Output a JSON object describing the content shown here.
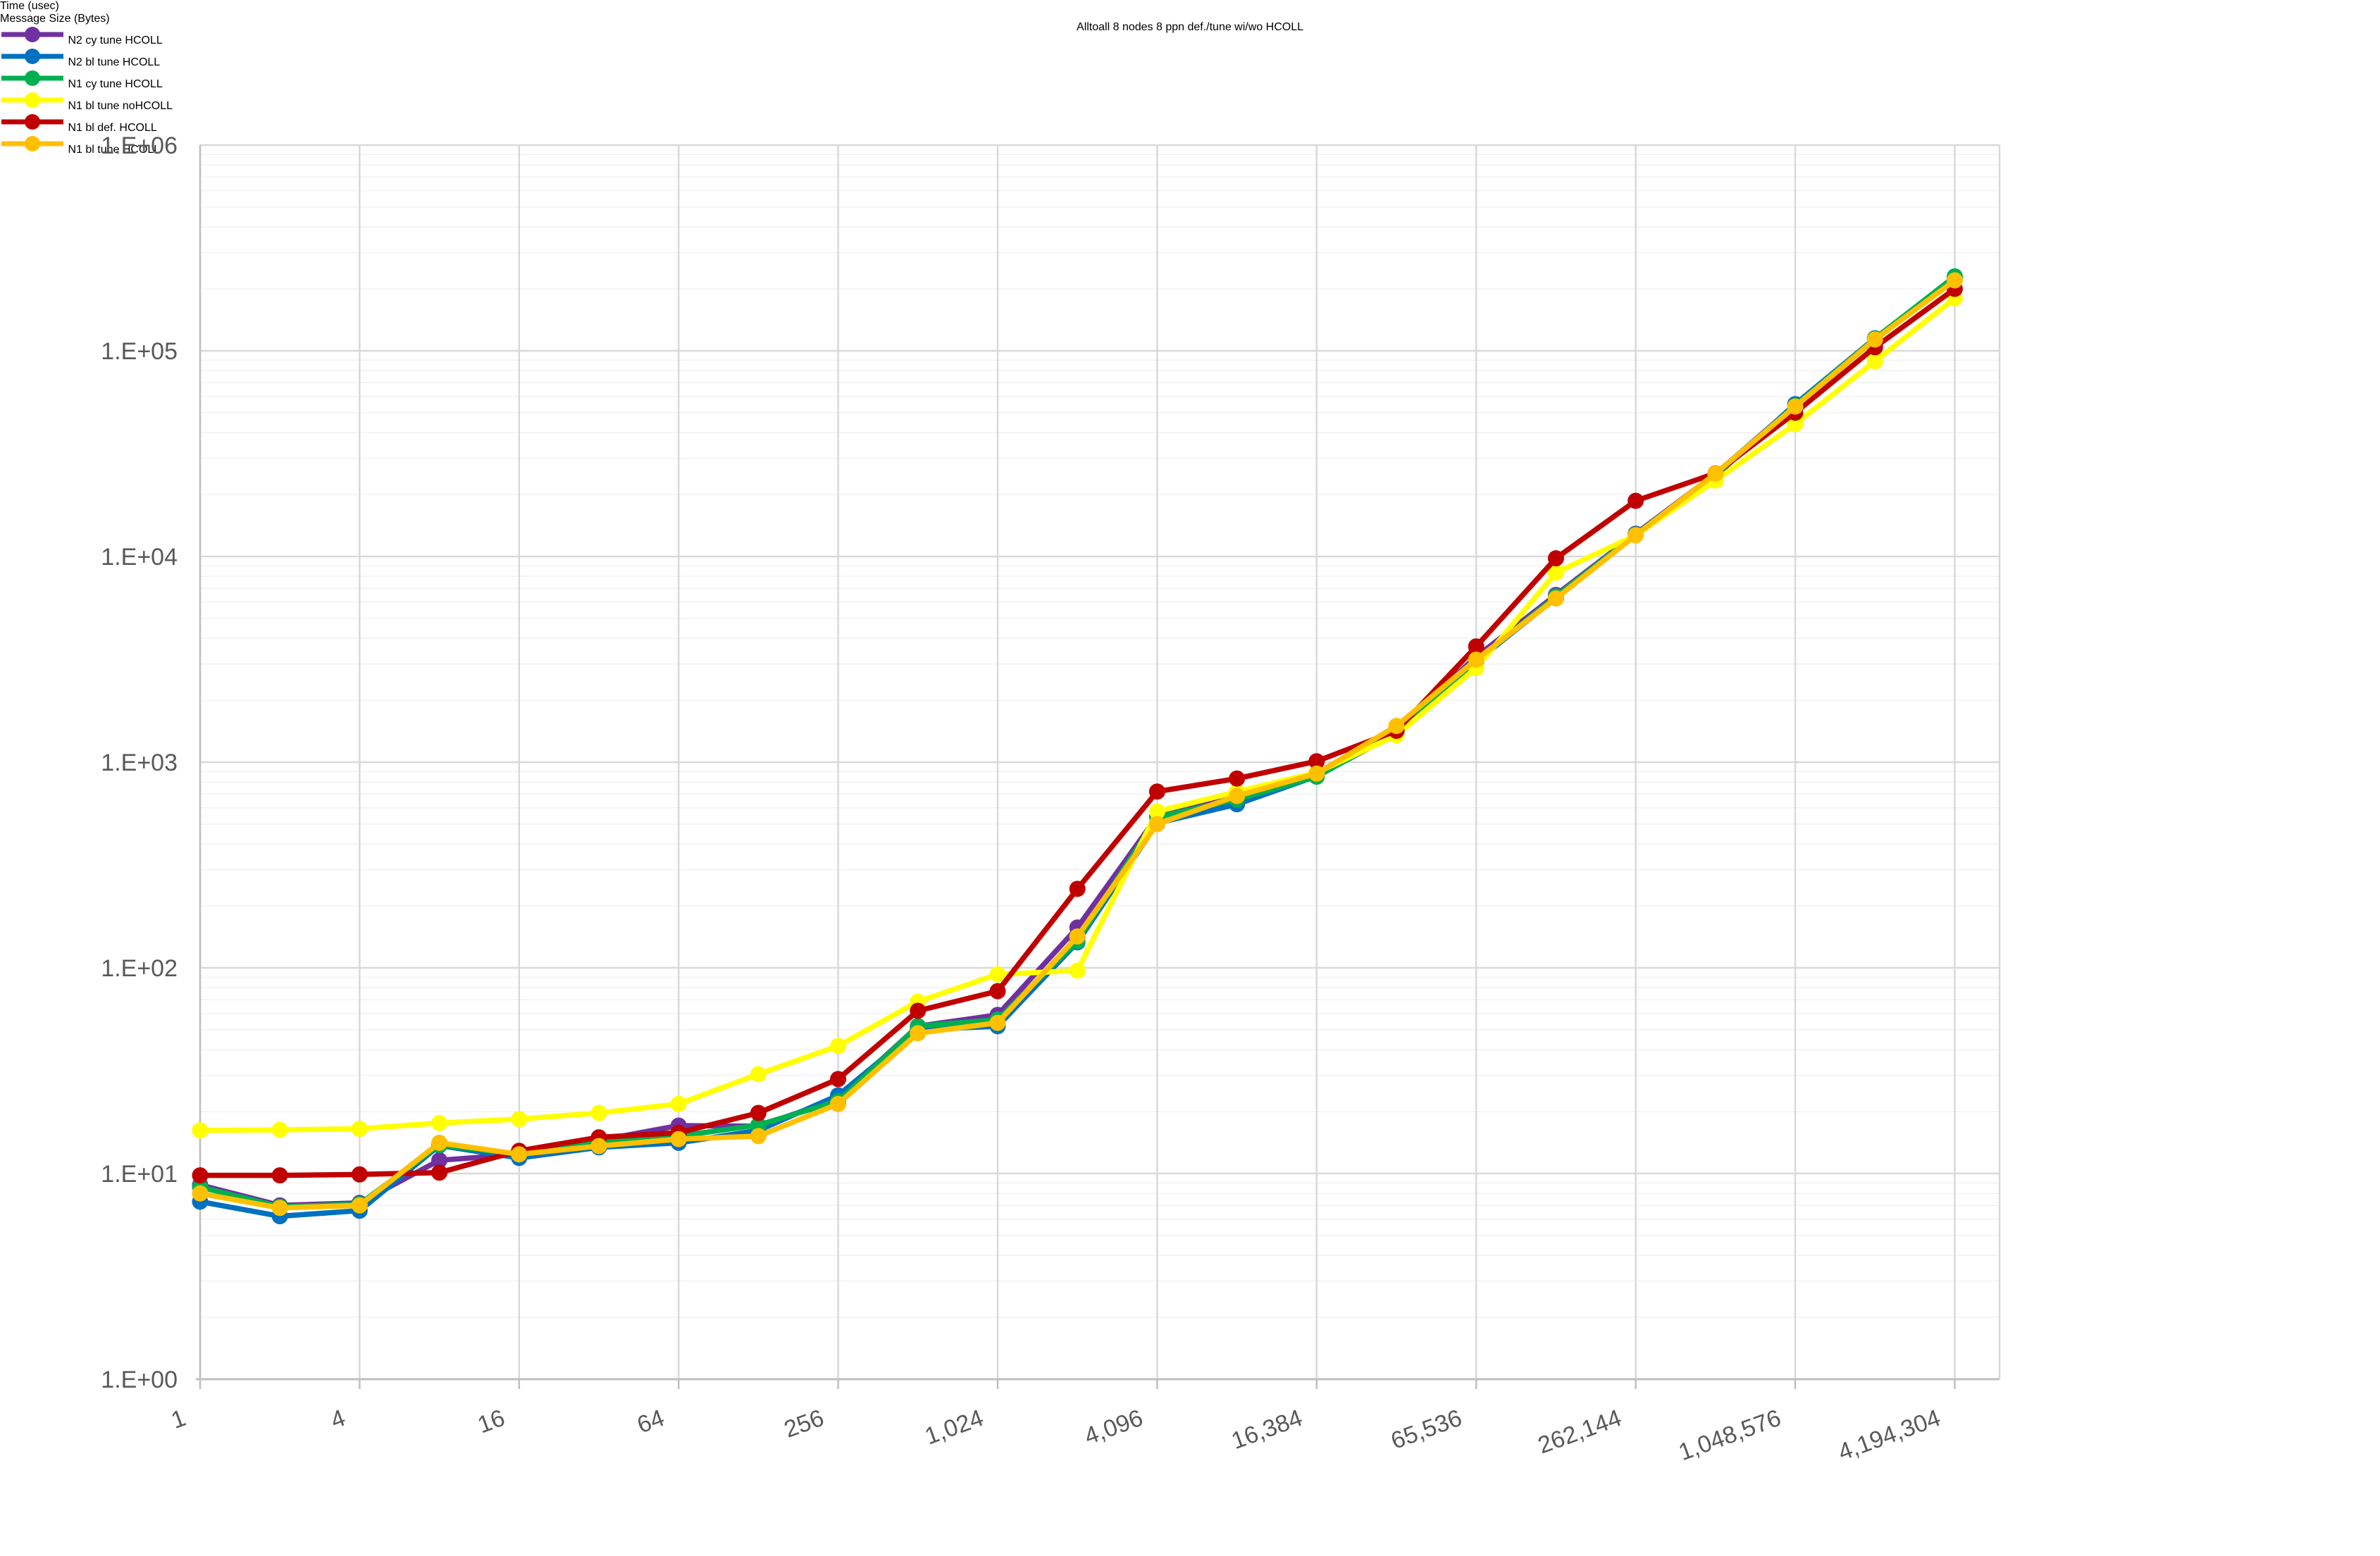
{
  "title": "Alltoall 8 nodes 8 ppn def./tune wi/wo HCOLL",
  "axes": {
    "y_label": "Time (usec)",
    "x_label": "Message Size (Bytes)",
    "y_tick_labels": [
      "1.E+00",
      "1.E+01",
      "1.E+02",
      "1.E+03",
      "1.E+04",
      "1.E+05",
      "1.E+06"
    ],
    "x_tick_labels": [
      "1",
      "4",
      "16",
      "64",
      "256",
      "1,024",
      "4,096",
      "16,384",
      "65,536",
      "262,144",
      "1,048,576",
      "4,194,304"
    ]
  },
  "palette": {
    "text": "#595959",
    "title_text": "#404040",
    "major_grid": "#D9D9D9",
    "minor_grid": "#F2F2F2",
    "axis_line": "#BFBFBF"
  },
  "chart_data": {
    "type": "line",
    "title": "Alltoall 8 nodes 8 ppn def./tune wi/wo HCOLL",
    "xlabel": "Message Size (Bytes)",
    "ylabel": "Time (usec)",
    "x_scale": "log2",
    "y_scale": "log10",
    "ylim": [
      1,
      1000000
    ],
    "xlim": [
      1,
      4194304
    ],
    "grid": {
      "horizontal_major": true,
      "horizontal_minor": true,
      "vertical_major": true
    },
    "legend_position": "right",
    "x": [
      1,
      2,
      4,
      8,
      16,
      32,
      64,
      128,
      256,
      512,
      1024,
      2048,
      4096,
      8192,
      16384,
      32768,
      65536,
      131072,
      262144,
      524288,
      1048576,
      2097152,
      4194304
    ],
    "x_major_ticks": [
      1,
      4,
      16,
      64,
      256,
      1024,
      4096,
      16384,
      65536,
      262144,
      1048576,
      4194304
    ],
    "series": [
      {
        "name": "N2 cy tune HCOLL",
        "color": "#7030A0",
        "values": [
          8.8,
          7.0,
          7.2,
          11.6,
          12.4,
          14.5,
          17.1,
          17.0,
          23.0,
          52,
          59,
          157,
          545,
          680,
          885,
          1450,
          3250,
          6500,
          12900,
          25200,
          54500,
          114000,
          225000
        ]
      },
      {
        "name": "N2 bl tune HCOLL",
        "color": "#0070C0",
        "values": [
          7.3,
          6.2,
          6.6,
          13.7,
          11.9,
          13.4,
          14.1,
          16.2,
          24.0,
          50,
          52,
          133,
          505,
          624,
          855,
          1380,
          3080,
          6300,
          12750,
          24600,
          55000,
          115000,
          228000
        ]
      },
      {
        "name": "N1 cy tune HCOLL",
        "color": "#00B050",
        "values": [
          8.6,
          6.9,
          7.1,
          13.8,
          12.4,
          14.2,
          15.2,
          17.2,
          22.5,
          52,
          56,
          135,
          540,
          660,
          850,
          1400,
          3100,
          6400,
          12800,
          25000,
          54000,
          114500,
          230000
        ]
      },
      {
        "name": "N1 bl tune noHCOLL",
        "color": "#FFFF00",
        "values": [
          16.2,
          16.3,
          16.5,
          17.6,
          18.4,
          19.7,
          21.8,
          30.4,
          41.7,
          68.5,
          93,
          97,
          576,
          718,
          890,
          1350,
          2870,
          8340,
          12680,
          23400,
          44000,
          89000,
          180000
        ]
      },
      {
        "name": "N1 bl def. HCOLL",
        "color": "#C00000",
        "values": [
          9.8,
          9.8,
          9.9,
          10.1,
          12.9,
          15.0,
          15.8,
          19.7,
          28.8,
          61.8,
          77,
          242,
          720,
          832,
          1010,
          1420,
          3650,
          9800,
          18650,
          25350,
          50000,
          104000,
          200000
        ]
      },
      {
        "name": "N1 bl tune HCOLL",
        "color": "#FFC000",
        "values": [
          8.0,
          6.8,
          7.0,
          14.1,
          12.4,
          13.6,
          14.7,
          15.2,
          21.8,
          48.1,
          54,
          142,
          500,
          685,
          880,
          1500,
          3150,
          6250,
          12680,
          25300,
          53600,
          113500,
          220000
        ]
      }
    ]
  }
}
